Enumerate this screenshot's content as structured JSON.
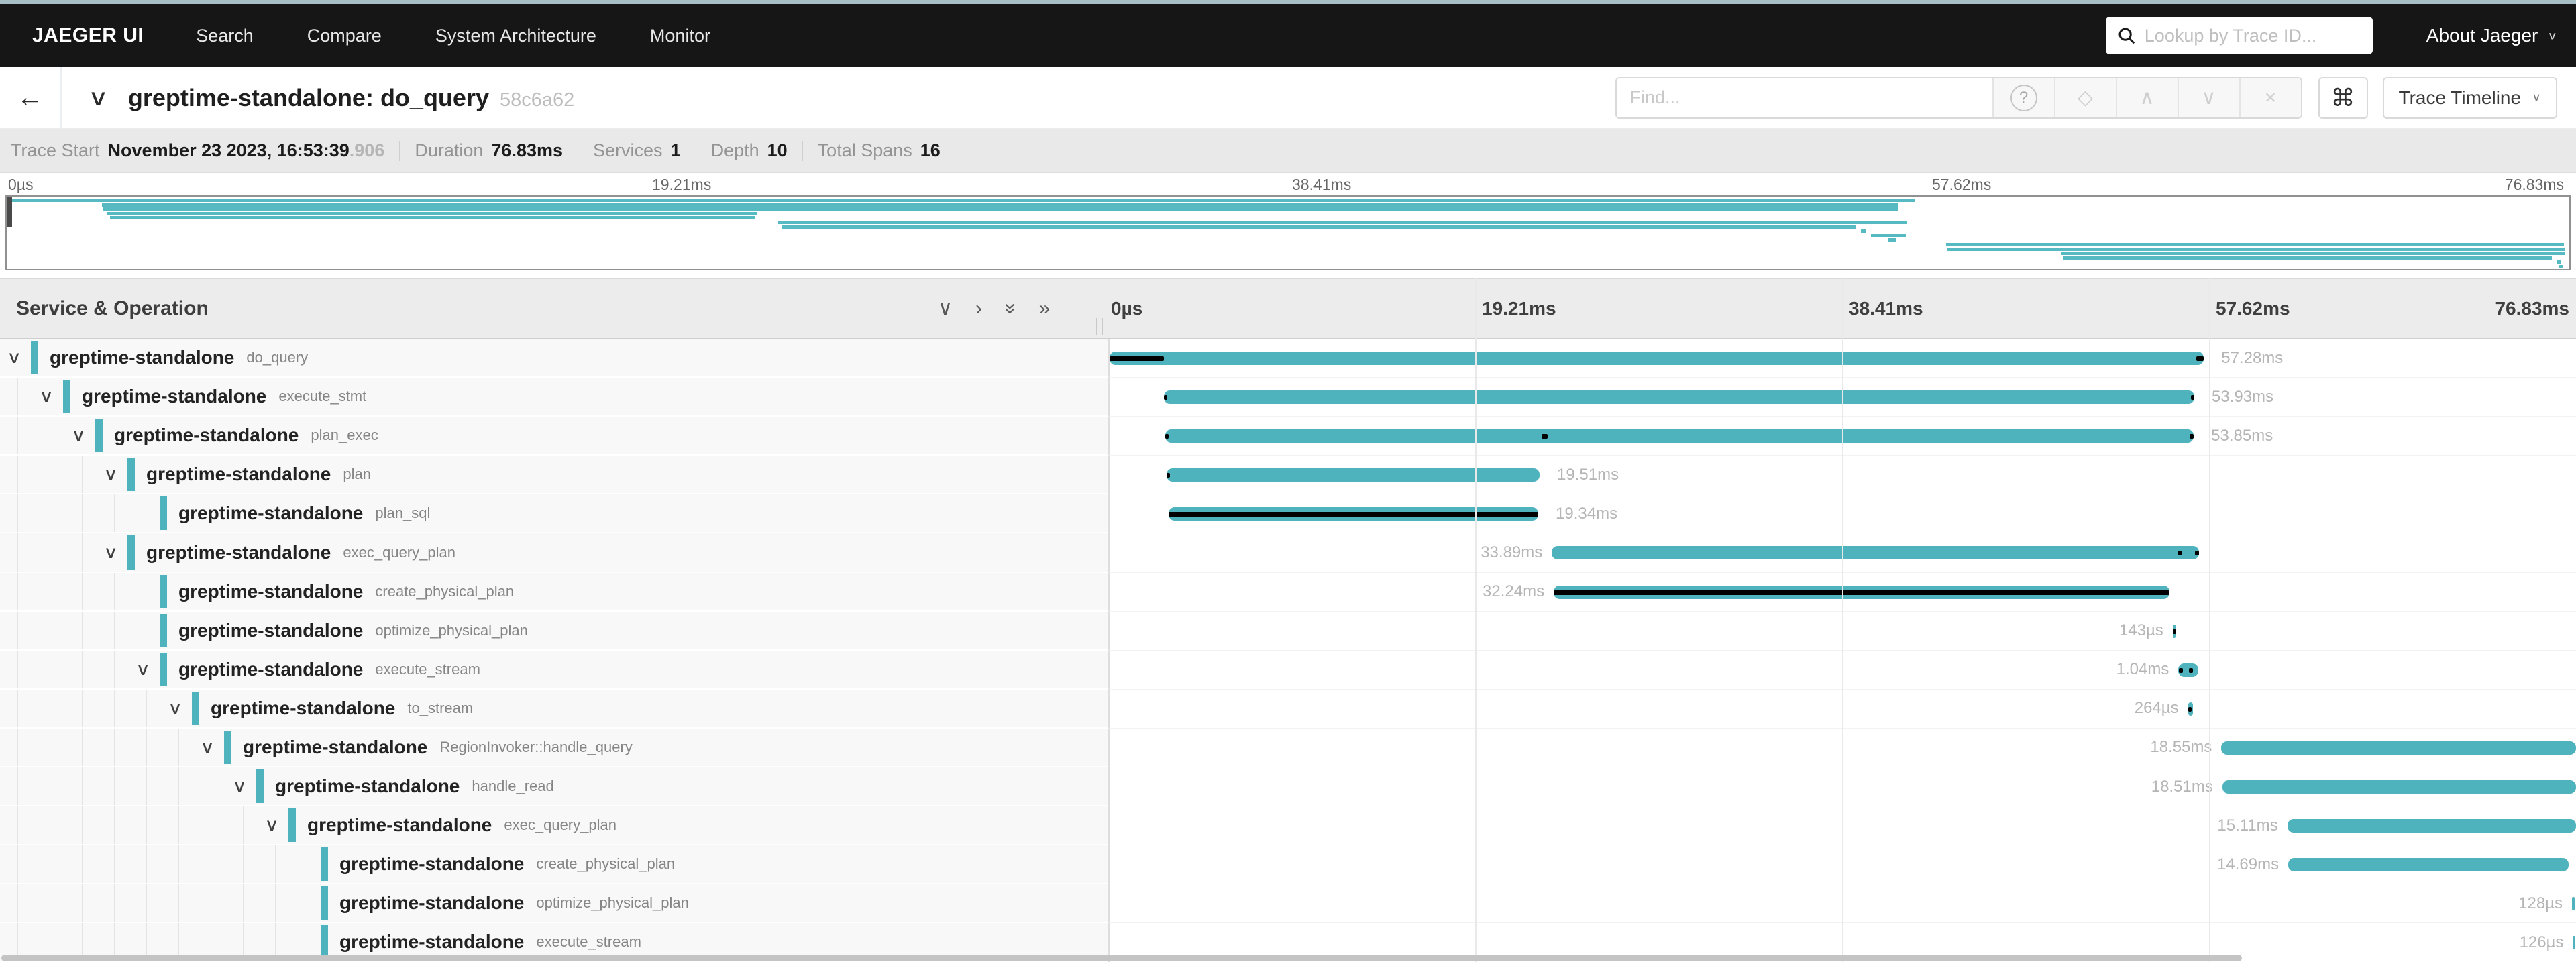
{
  "nav": {
    "brand": "JAEGER UI",
    "items": [
      "Search",
      "Compare",
      "System Architecture",
      "Monitor"
    ],
    "lookup_placeholder": "Lookup by Trace ID...",
    "about_label": "About Jaeger"
  },
  "trace_header": {
    "title": "greptime-standalone: do_query",
    "trace_id": "58c6a62",
    "find_placeholder": "Find...",
    "view_label": "Trace Timeline"
  },
  "meta": [
    {
      "label": "Trace Start",
      "value": "November 23 2023, 16:53:39",
      "suffix": ".906"
    },
    {
      "label": "Duration",
      "value": "76.83ms"
    },
    {
      "label": "Services",
      "value": "1"
    },
    {
      "label": "Depth",
      "value": "10"
    },
    {
      "label": "Total Spans",
      "value": "16"
    }
  ],
  "timeline": {
    "left_header": "Service & Operation",
    "duration_ms": 76.83,
    "ticks": [
      "0µs",
      "19.21ms",
      "38.41ms",
      "57.62ms",
      "76.83ms"
    ]
  },
  "icons": {
    "back": "←",
    "chevron_down": "∨",
    "chevron_right": "›",
    "double_chevron": "»",
    "caret": "∨",
    "help": "?",
    "target": "◇",
    "prev": "∧",
    "next": "∨",
    "clear": "×",
    "keyboard_shortcuts": "⌘"
  },
  "colors": {
    "accent": "#4fb3bd",
    "critical": "#000000",
    "navbar": "#161616",
    "topstrip": "#a8bec5"
  },
  "spans": [
    {
      "service": "greptime-standalone",
      "operation": "do_query",
      "depth": 0,
      "expandable": true,
      "start_ms": 0,
      "duration_ms": 57.28,
      "duration_label": "57.28ms",
      "label_side": "right",
      "critical": [
        [
          0,
          2.85
        ],
        [
          56.9,
          57.28
        ]
      ]
    },
    {
      "service": "greptime-standalone",
      "operation": "execute_stmt",
      "depth": 1,
      "expandable": true,
      "start_ms": 2.85,
      "duration_ms": 53.93,
      "duration_label": "53.93ms",
      "label_side": "right",
      "critical": [
        [
          2.85,
          3.02
        ],
        [
          56.6,
          56.78
        ]
      ]
    },
    {
      "service": "greptime-standalone",
      "operation": "plan_exec",
      "depth": 2,
      "expandable": true,
      "start_ms": 2.9,
      "duration_ms": 53.85,
      "duration_label": "53.85ms",
      "label_side": "right",
      "critical": [
        [
          2.9,
          3.08
        ],
        [
          22.6,
          22.92
        ],
        [
          56.55,
          56.75
        ]
      ]
    },
    {
      "service": "greptime-standalone",
      "operation": "plan",
      "depth": 3,
      "expandable": true,
      "start_ms": 3.0,
      "duration_ms": 19.51,
      "duration_label": "19.51ms",
      "label_side": "right",
      "critical": [
        [
          3.0,
          3.17
        ]
      ]
    },
    {
      "service": "greptime-standalone",
      "operation": "plan_sql",
      "depth": 4,
      "expandable": false,
      "start_ms": 3.1,
      "duration_ms": 19.34,
      "duration_label": "19.34ms",
      "label_side": "right",
      "critical": [
        [
          3.1,
          22.44
        ]
      ]
    },
    {
      "service": "greptime-standalone",
      "operation": "exec_query_plan",
      "depth": 3,
      "expandable": true,
      "start_ms": 23.15,
      "duration_ms": 33.89,
      "duration_label": "33.89ms",
      "label_side": "left",
      "critical": [
        [
          55.9,
          56.15
        ],
        [
          56.82,
          57.04
        ]
      ]
    },
    {
      "service": "greptime-standalone",
      "operation": "create_physical_plan",
      "depth": 4,
      "expandable": false,
      "start_ms": 23.25,
      "duration_ms": 32.24,
      "duration_label": "32.24ms",
      "label_side": "left",
      "critical": [
        [
          23.25,
          55.49
        ]
      ]
    },
    {
      "service": "greptime-standalone",
      "operation": "optimize_physical_plan",
      "depth": 4,
      "expandable": false,
      "start_ms": 55.65,
      "duration_ms": 0.143,
      "duration_label": "143µs",
      "label_side": "left",
      "critical": [
        [
          55.65,
          55.79
        ]
      ]
    },
    {
      "service": "greptime-standalone",
      "operation": "execute_stream",
      "depth": 4,
      "expandable": true,
      "start_ms": 55.95,
      "duration_ms": 1.04,
      "duration_label": "1.04ms",
      "label_side": "left",
      "critical": [
        [
          55.98,
          56.18
        ],
        [
          56.5,
          56.72
        ]
      ]
    },
    {
      "service": "greptime-standalone",
      "operation": "to_stream",
      "depth": 5,
      "expandable": true,
      "start_ms": 56.45,
      "duration_ms": 0.264,
      "duration_label": "264µs",
      "label_side": "left",
      "critical": [
        [
          56.48,
          56.64
        ]
      ]
    },
    {
      "service": "greptime-standalone",
      "operation": "RegionInvoker::handle_query",
      "depth": 6,
      "expandable": true,
      "start_ms": 58.2,
      "duration_ms": 18.55,
      "duration_label": "18.55ms",
      "label_side": "left",
      "critical": []
    },
    {
      "service": "greptime-standalone",
      "operation": "handle_read",
      "depth": 7,
      "expandable": true,
      "start_ms": 58.25,
      "duration_ms": 18.51,
      "duration_label": "18.51ms",
      "label_side": "left",
      "critical": []
    },
    {
      "service": "greptime-standalone",
      "operation": "exec_query_plan",
      "depth": 8,
      "expandable": true,
      "start_ms": 61.65,
      "duration_ms": 15.11,
      "duration_label": "15.11ms",
      "label_side": "left",
      "critical": []
    },
    {
      "service": "greptime-standalone",
      "operation": "create_physical_plan",
      "depth": 9,
      "expandable": false,
      "start_ms": 61.7,
      "duration_ms": 14.69,
      "duration_label": "14.69ms",
      "label_side": "left",
      "critical": []
    },
    {
      "service": "greptime-standalone",
      "operation": "optimize_physical_plan",
      "depth": 9,
      "expandable": false,
      "start_ms": 76.55,
      "duration_ms": 0.128,
      "duration_label": "128µs",
      "label_side": "left",
      "critical": []
    },
    {
      "service": "greptime-standalone",
      "operation": "execute_stream",
      "depth": 9,
      "expandable": false,
      "start_ms": 76.6,
      "duration_ms": 0.126,
      "duration_label": "126µs",
      "label_side": "left",
      "critical": []
    }
  ]
}
